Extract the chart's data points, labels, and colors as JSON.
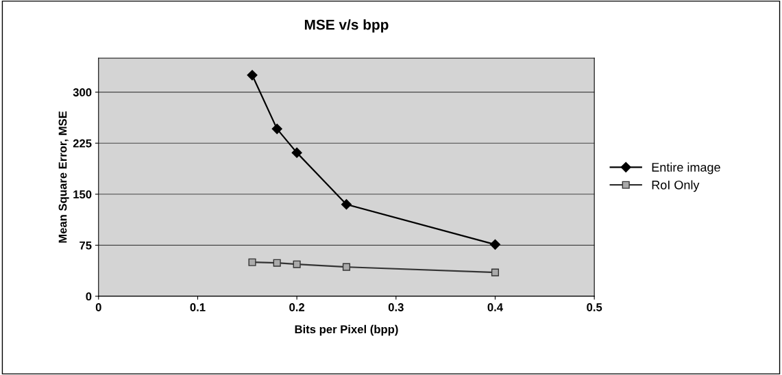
{
  "chart_data": {
    "type": "line",
    "title": "MSE v/s bpp",
    "xlabel": "Bits per Pixel (bpp)",
    "ylabel": "Mean Square Error, MSE",
    "x": [
      0.155,
      0.18,
      0.2,
      0.25,
      0.4
    ],
    "series": [
      {
        "name": "Entire image",
        "color": "#000000",
        "marker": "diamond",
        "values": [
          325,
          246,
          211,
          135,
          76
        ]
      },
      {
        "name": "RoI Only",
        "color": "#333333",
        "marker": "square",
        "values": [
          50,
          49,
          47,
          43,
          35
        ]
      }
    ],
    "xlim": [
      0,
      0.5
    ],
    "xticks": [
      0,
      0.1,
      0.2,
      0.3,
      0.4,
      0.5
    ],
    "ylim": [
      0,
      350
    ],
    "yticks": [
      0,
      75,
      150,
      225,
      300
    ],
    "grid": "y",
    "legend": "right",
    "line_style": "solid"
  }
}
